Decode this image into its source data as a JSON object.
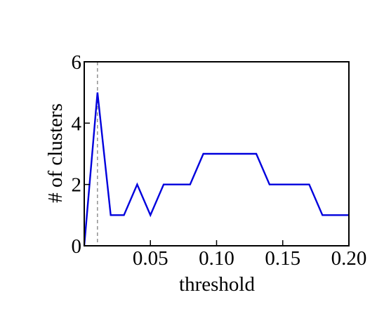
{
  "chart_data": {
    "type": "line",
    "title": "",
    "xlabel": "threshold",
    "ylabel": "# of clusters",
    "xlim": [
      0.0,
      0.2
    ],
    "ylim": [
      0,
      6
    ],
    "x_ticks": [
      0.05,
      0.1,
      0.15,
      0.2
    ],
    "x_tick_labels": [
      "0.05",
      "0.10",
      "0.15",
      "0.20"
    ],
    "y_ticks": [
      0,
      2,
      4,
      6
    ],
    "y_tick_labels": [
      "0",
      "2",
      "4",
      "6"
    ],
    "grid": false,
    "legend": "none",
    "series": [
      {
        "color": "#0000dd",
        "x": [
          0.0,
          0.01,
          0.02,
          0.03,
          0.04,
          0.05,
          0.06,
          0.07,
          0.08,
          0.09,
          0.1,
          0.11,
          0.12,
          0.13,
          0.14,
          0.15,
          0.16,
          0.17,
          0.18,
          0.19,
          0.2
        ],
        "y": [
          0,
          5,
          1,
          1,
          2,
          1,
          2,
          2,
          2,
          3,
          3,
          3,
          3,
          3,
          2,
          2,
          2,
          2,
          1,
          1,
          1
        ]
      }
    ],
    "reference_lines": [
      {
        "orientation": "vertical",
        "x": 0.01,
        "style": "dashed",
        "color": "#808080"
      }
    ]
  }
}
